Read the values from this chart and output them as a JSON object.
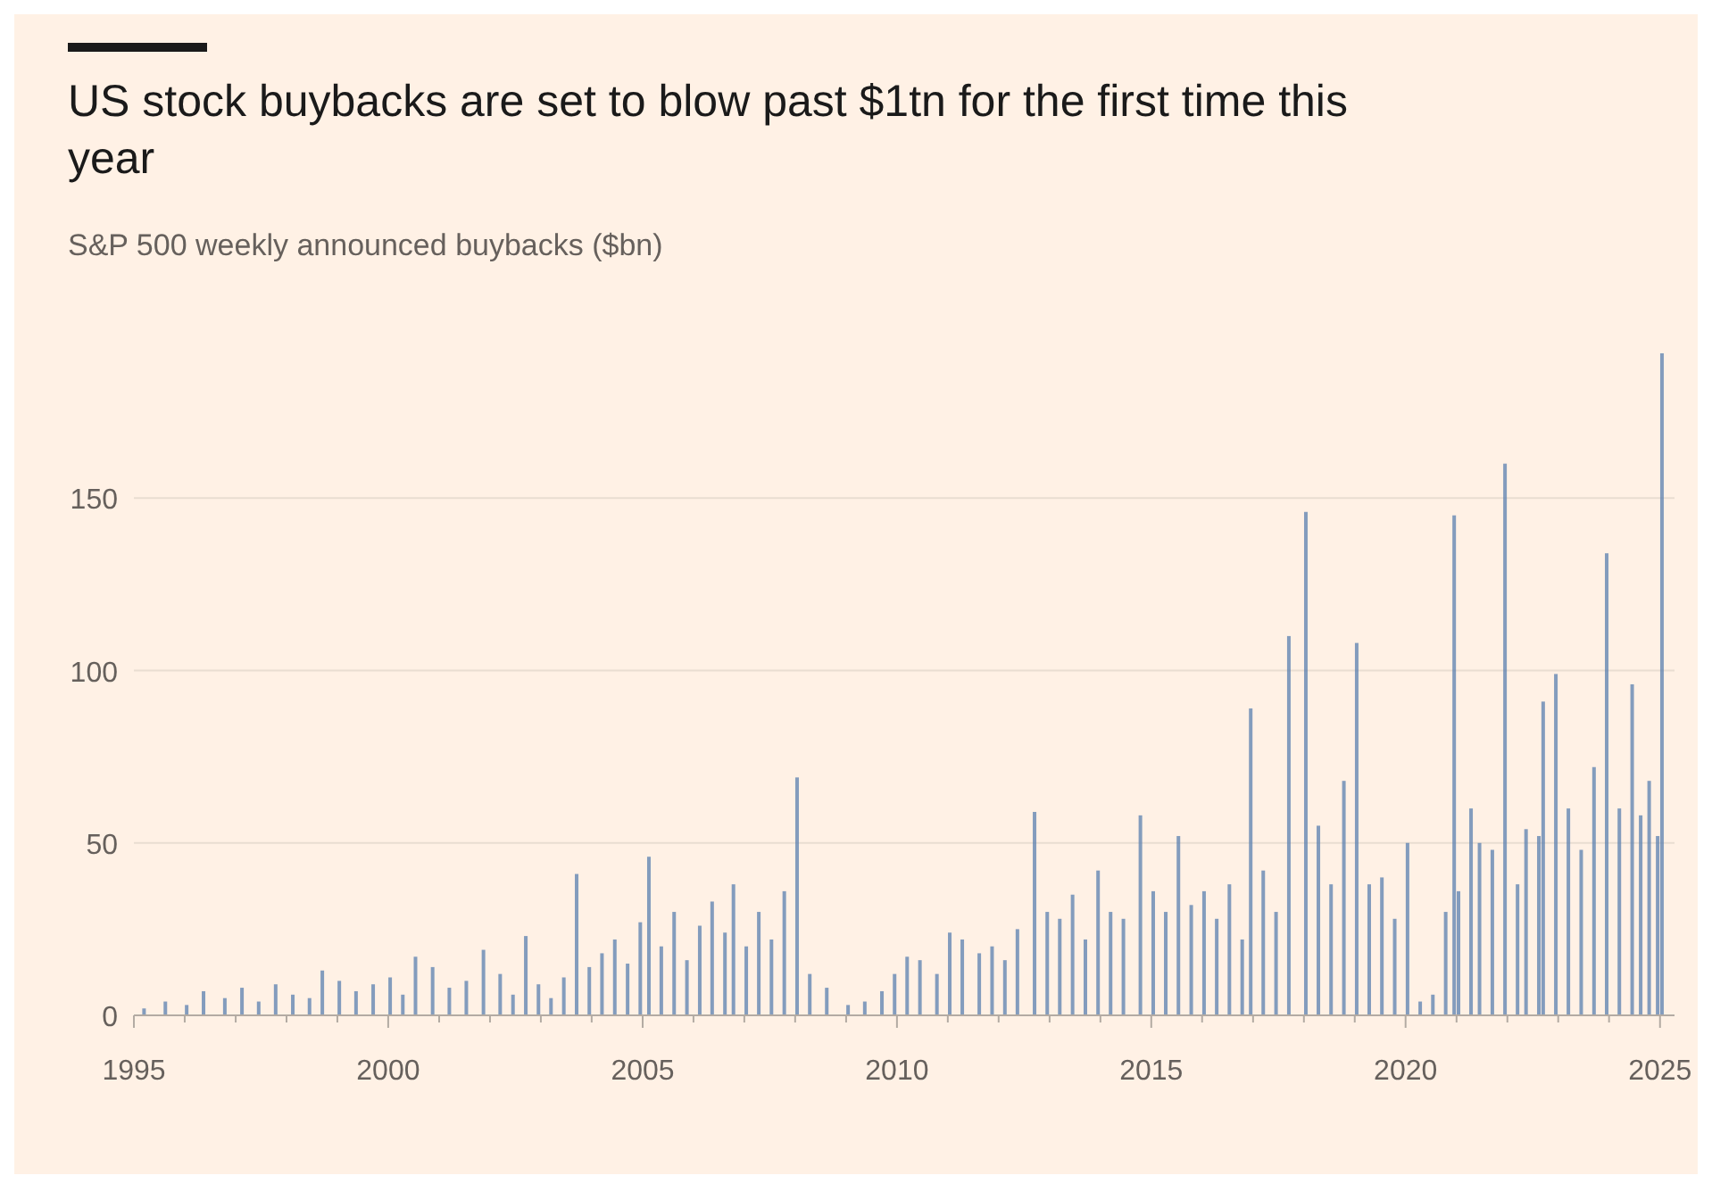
{
  "chart_data": {
    "type": "bar",
    "title": "US stock buybacks are set to blow past $1tn for the first time this year",
    "subtitle": "S&P 500 weekly announced buybacks ($bn)",
    "x": [
      "1995-03-15",
      "1995-08-15",
      "1996-01-15",
      "1996-05-15",
      "1996-10-15",
      "1997-02-15",
      "1997-06-15",
      "1997-10-15",
      "1998-02-15",
      "1998-06-15",
      "1998-09-15",
      "1999-01-15",
      "1999-05-15",
      "1999-09-15",
      "2000-01-15",
      "2000-04-15",
      "2000-07-15",
      "2000-11-15",
      "2001-03-15",
      "2001-07-15",
      "2001-11-15",
      "2002-03-15",
      "2002-06-15",
      "2002-09-15",
      "2002-12-15",
      "2003-03-15",
      "2003-06-15",
      "2003-09-15",
      "2003-12-15",
      "2004-03-15",
      "2004-06-15",
      "2004-09-15",
      "2004-12-15",
      "2005-02-15",
      "2005-05-15",
      "2005-08-15",
      "2005-11-15",
      "2006-02-15",
      "2006-05-15",
      "2006-08-15",
      "2006-10-15",
      "2007-01-15",
      "2007-04-15",
      "2007-07-15",
      "2007-10-15",
      "2008-01-15",
      "2008-04-15",
      "2008-08-15",
      "2009-01-15",
      "2009-05-15",
      "2009-09-15",
      "2009-12-15",
      "2010-03-15",
      "2010-06-15",
      "2010-10-15",
      "2011-01-15",
      "2011-04-15",
      "2011-08-15",
      "2011-11-15",
      "2012-02-15",
      "2012-05-15",
      "2012-09-15",
      "2012-12-15",
      "2013-03-15",
      "2013-06-15",
      "2013-09-15",
      "2013-12-15",
      "2014-03-15",
      "2014-06-15",
      "2014-10-15",
      "2015-01-15",
      "2015-04-15",
      "2015-07-15",
      "2015-10-15",
      "2016-01-15",
      "2016-04-15",
      "2016-07-15",
      "2016-10-15",
      "2016-12-15",
      "2017-03-15",
      "2017-06-15",
      "2017-09-15",
      "2018-01-15",
      "2018-04-15",
      "2018-07-15",
      "2018-10-15",
      "2019-01-15",
      "2019-04-15",
      "2019-07-15",
      "2019-10-15",
      "2020-01-15",
      "2020-04-15",
      "2020-07-15",
      "2020-10-15",
      "2020-12-15",
      "2021-01-15",
      "2021-04-15",
      "2021-06-15",
      "2021-09-15",
      "2021-12-15",
      "2022-03-15",
      "2022-05-15",
      "2022-08-15",
      "2022-09-15",
      "2022-12-15",
      "2023-03-15",
      "2023-06-15",
      "2023-09-15",
      "2023-12-15",
      "2024-03-15",
      "2024-06-15",
      "2024-08-15",
      "2024-10-15",
      "2024-12-15",
      "2025-01-15"
    ],
    "values": [
      2,
      4,
      3,
      7,
      5,
      8,
      4,
      9,
      6,
      5,
      13,
      10,
      7,
      9,
      11,
      6,
      17,
      14,
      8,
      10,
      19,
      12,
      6,
      23,
      9,
      5,
      11,
      41,
      14,
      18,
      22,
      15,
      27,
      46,
      20,
      30,
      16,
      26,
      33,
      24,
      38,
      20,
      30,
      22,
      36,
      69,
      12,
      8,
      3,
      4,
      7,
      12,
      17,
      16,
      12,
      24,
      22,
      18,
      20,
      16,
      25,
      59,
      30,
      28,
      35,
      22,
      42,
      30,
      28,
      58,
      36,
      30,
      52,
      32,
      36,
      28,
      38,
      22,
      89,
      42,
      30,
      110,
      146,
      55,
      38,
      68,
      108,
      38,
      40,
      28,
      50,
      4,
      6,
      30,
      145,
      36,
      60,
      50,
      48,
      160,
      38,
      54,
      52,
      91,
      99,
      60,
      48,
      72,
      134,
      60,
      96,
      58,
      68,
      52,
      192
    ],
    "color": "#5a7faf",
    "xlim": [
      "1995-01-01",
      "2025-04-15"
    ],
    "xticks": [
      "1995",
      {
        "value": "1996",
        "label": null
      },
      {
        "value": "1997",
        "label": null
      },
      {
        "value": "1998",
        "label": null
      },
      {
        "value": "1999",
        "label": null
      },
      "2000",
      {
        "value": "2001",
        "label": null
      },
      {
        "value": "2002",
        "label": null
      },
      {
        "value": "2003",
        "label": null
      },
      {
        "value": "2004",
        "label": null
      },
      "2005",
      {
        "value": "2006",
        "label": null
      },
      {
        "value": "2007",
        "label": null
      },
      {
        "value": "2008",
        "label": null
      },
      {
        "value": "2009",
        "label": null
      },
      "2010",
      {
        "value": "2011",
        "label": null
      },
      {
        "value": "2012",
        "label": null
      },
      {
        "value": "2013",
        "label": null
      },
      {
        "value": "2014",
        "label": null
      },
      "2015",
      {
        "value": "2016",
        "label": null
      },
      {
        "value": "2017",
        "label": null
      },
      {
        "value": "2018",
        "label": null
      },
      {
        "value": "2019",
        "label": null
      },
      "2020",
      {
        "value": "2021",
        "label": null
      },
      {
        "value": "2022",
        "label": null
      },
      {
        "value": "2023",
        "label": null
      },
      {
        "value": "2024",
        "label": null
      },
      "2025"
    ],
    "ylim": [
      0,
      192
    ],
    "yticks": [
      0,
      50,
      100,
      150
    ],
    "grid": "y"
  }
}
